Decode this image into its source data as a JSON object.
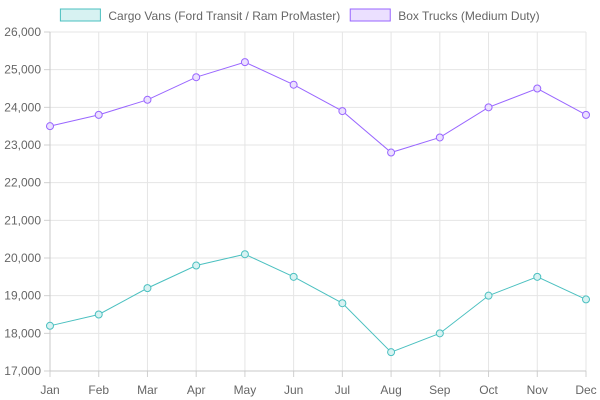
{
  "chart_data": {
    "type": "line",
    "categories": [
      "Jan",
      "Feb",
      "Mar",
      "Apr",
      "May",
      "Jun",
      "Jul",
      "Aug",
      "Sep",
      "Oct",
      "Nov",
      "Dec"
    ],
    "ylim": [
      17000,
      26000
    ],
    "y_ticks": [
      "17,000",
      "18,000",
      "19,000",
      "20,000",
      "21,000",
      "22,000",
      "23,000",
      "24,000",
      "25,000",
      "26,000"
    ],
    "grid": true,
    "legend_position": "top",
    "series": [
      {
        "name": "Cargo Vans (Ford Transit / Ram ProMaster)",
        "color": "#4bc0c0",
        "fill": "#d7f2f2",
        "values": [
          18200,
          18500,
          19200,
          19800,
          20100,
          19500,
          18800,
          17500,
          18000,
          19000,
          19500,
          18900
        ]
      },
      {
        "name": "Box Trucks (Medium Duty)",
        "color": "#9966ff",
        "fill": "#ebe0ff",
        "values": [
          23500,
          23800,
          24200,
          24800,
          25200,
          24600,
          23900,
          22800,
          23200,
          24000,
          24500,
          23800
        ]
      }
    ]
  }
}
